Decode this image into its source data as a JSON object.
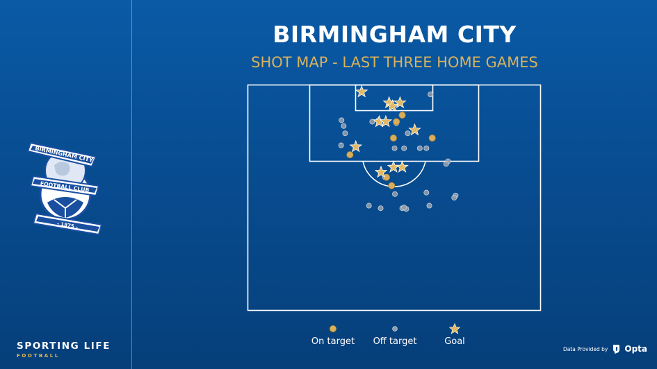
{
  "title": "BIRMINGHAM CITY",
  "subtitle": "SHOT MAP - LAST THREE HOME GAMES",
  "crest": {
    "top_text": "BIRMINGHAM CITY",
    "mid_text": "FOOTBALL CLUB",
    "year_text": "- 1875 -"
  },
  "brand": {
    "main": "SPORTING LIFE",
    "sub": "FOOTBALL"
  },
  "provided": {
    "text": "Data Provided by",
    "logo": "Opta"
  },
  "colors": {
    "on_target": "#d9ad5a",
    "off_target": "#8e9cad",
    "goal": "#e2b962",
    "pitch_line": "#ffffff",
    "subtitle": "#d8b25e"
  },
  "legend": [
    {
      "key": "on_target",
      "label": "On target"
    },
    {
      "key": "off_target",
      "label": "Off target"
    },
    {
      "key": "goal",
      "label": "Goal"
    }
  ],
  "chart_data": {
    "type": "scatter",
    "x_axis": "pitch width (yards, 0–80 across the attacking half)",
    "y_axis": "distance from goal line (yards)",
    "xlim": [
      0,
      80
    ],
    "ylim": [
      0,
      62
    ],
    "series": [
      {
        "name": "Goal",
        "points": [
          [
            31.1,
            1.9
          ],
          [
            38.6,
            4.9
          ],
          [
            41.6,
            4.9
          ],
          [
            39.5,
            5.8
          ],
          [
            35.9,
            10.1
          ],
          [
            37.7,
            10.1
          ],
          [
            45.6,
            12.4
          ],
          [
            29.5,
            17.0
          ],
          [
            36.4,
            24.0
          ],
          [
            39.8,
            22.6
          ],
          [
            42.2,
            22.6
          ]
        ]
      },
      {
        "name": "On target",
        "points": [
          [
            42.2,
            8.3
          ],
          [
            40.6,
            10.1
          ],
          [
            39.8,
            14.6
          ],
          [
            50.4,
            14.6
          ],
          [
            27.9,
            19.2
          ],
          [
            37.9,
            25.4
          ],
          [
            39.3,
            27.7
          ]
        ]
      },
      {
        "name": "Off target",
        "points": [
          [
            49.9,
            2.6
          ],
          [
            25.6,
            9.7
          ],
          [
            26.2,
            11.3
          ],
          [
            34.0,
            10.1
          ],
          [
            35.7,
            9.7
          ],
          [
            40.6,
            10.5
          ],
          [
            26.6,
            13.3
          ],
          [
            25.5,
            16.6
          ],
          [
            43.7,
            13.3
          ],
          [
            40.1,
            17.4
          ],
          [
            42.7,
            17.4
          ],
          [
            47.0,
            17.4
          ],
          [
            48.8,
            17.4
          ],
          [
            54.7,
            21.0
          ],
          [
            54.2,
            21.7
          ],
          [
            37.5,
            25.4
          ],
          [
            40.2,
            30.0
          ],
          [
            48.8,
            29.6
          ],
          [
            56.8,
            30.4
          ],
          [
            56.4,
            31.0
          ],
          [
            33.1,
            33.2
          ],
          [
            36.3,
            33.9
          ],
          [
            42.2,
            33.9
          ],
          [
            43.3,
            34.1
          ],
          [
            42.7,
            33.7
          ],
          [
            49.6,
            33.2
          ]
        ]
      }
    ]
  }
}
